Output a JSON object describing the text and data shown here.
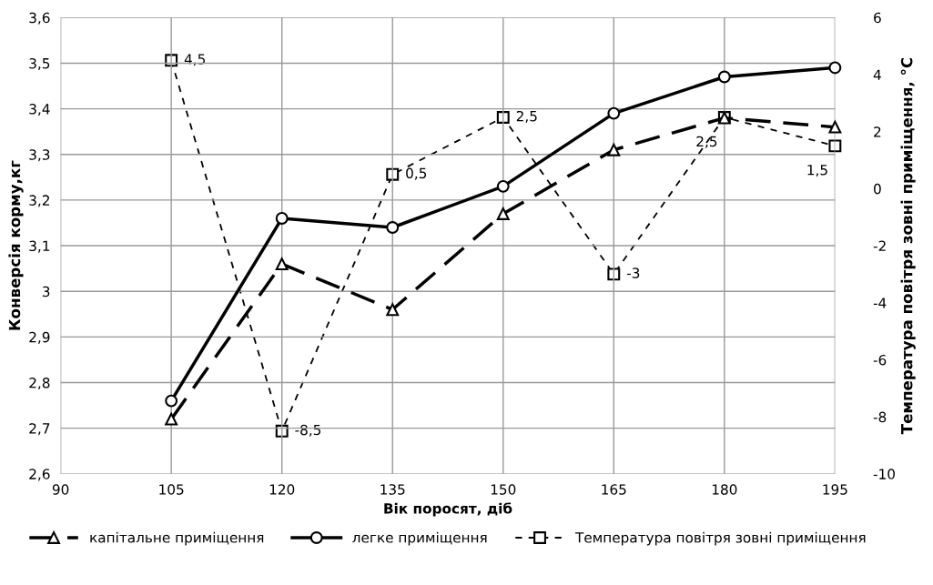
{
  "chart_data": {
    "type": "line",
    "xlabel": "Вік поросят, діб",
    "ylabel": "Конверсія корму,кг",
    "y2label": "Температура повітря зовні приміщення, °С",
    "x": [
      105,
      120,
      135,
      150,
      165,
      180,
      195
    ],
    "series": [
      {
        "name": "капітальне приміщення",
        "color": "#000000",
        "values": [
          2.72,
          3.06,
          2.96,
          3.17,
          3.31,
          3.38,
          3.36
        ],
        "marker": "triangle",
        "line_style": "dashed"
      },
      {
        "name": "легке приміщення",
        "color": "#000000",
        "values": [
          2.76,
          3.16,
          3.14,
          3.23,
          3.39,
          3.47,
          3.49
        ],
        "marker": "circle",
        "line_style": "solid"
      },
      {
        "name": "Температура повітря зовні приміщення",
        "color": "#000000",
        "axis": "y2",
        "values": [
          4.5,
          -8.5,
          0.5,
          2.5,
          -3,
          2.5,
          1.5
        ],
        "marker": "square",
        "line_style": "dotted",
        "value_labels": [
          "4,5",
          "-8,5",
          "0,5",
          "2,5",
          "-3",
          "2,5",
          "1,5"
        ]
      }
    ],
    "xlim": [
      90,
      195
    ],
    "xticks": [
      90,
      105,
      120,
      135,
      150,
      165,
      180,
      195
    ],
    "ylim": [
      2.6,
      3.6
    ],
    "yticks": [
      {
        "value": 2.6,
        "label": "2,6"
      },
      {
        "value": 2.7,
        "label": "2,7"
      },
      {
        "value": 2.8,
        "label": "2,8"
      },
      {
        "value": 2.9,
        "label": "2,9"
      },
      {
        "value": 3,
        "label": "3"
      },
      {
        "value": 3.1,
        "label": "3,1"
      },
      {
        "value": 3.2,
        "label": "3,2"
      },
      {
        "value": 3.3,
        "label": "3,3"
      },
      {
        "value": 3.4,
        "label": "3,4"
      },
      {
        "value": 3.5,
        "label": "3,5"
      },
      {
        "value": 3.6,
        "label": "3,6"
      }
    ],
    "y2lim": [
      -10,
      6
    ],
    "y2ticks": [
      -10,
      -8,
      -6,
      -4,
      -2,
      0,
      2,
      4,
      6
    ],
    "grid": true,
    "legend": "bottom"
  }
}
